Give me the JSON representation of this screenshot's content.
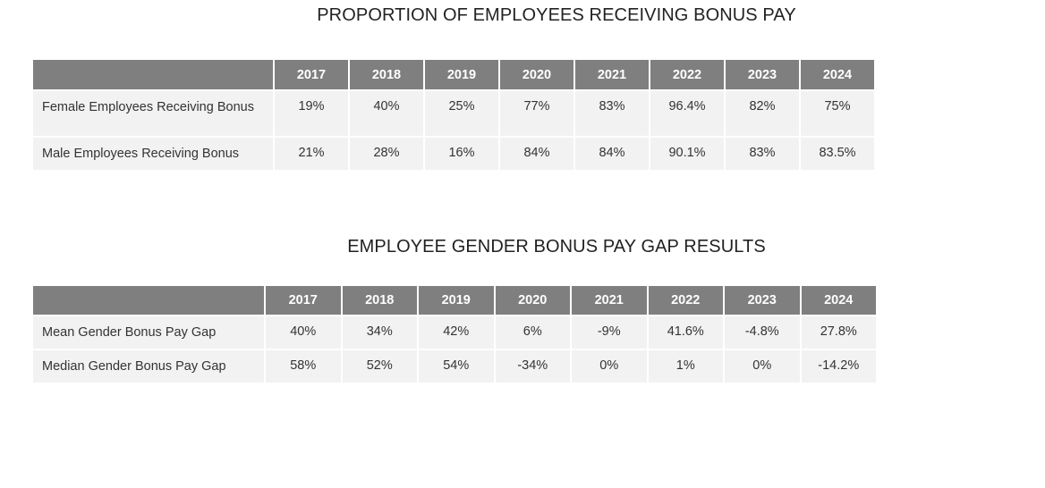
{
  "table1": {
    "title": "PROPORTION OF EMPLOYEES RECEIVING BONUS PAY",
    "years": [
      "2017",
      "2018",
      "2019",
      "2020",
      "2021",
      "2022",
      "2023",
      "2024"
    ],
    "rows": [
      {
        "label": "Female Employees Receiving Bonus",
        "values": [
          "19%",
          "40%",
          "25%",
          "77%",
          "83%",
          "96.4%",
          "82%",
          "75%"
        ]
      },
      {
        "label": "Male Employees Receiving Bonus",
        "values": [
          "21%",
          "28%",
          "16%",
          "84%",
          "84%",
          "90.1%",
          "83%",
          "83.5%"
        ]
      }
    ]
  },
  "table2": {
    "title": "EMPLOYEE GENDER BONUS PAY GAP RESULTS",
    "years": [
      "2017",
      "2018",
      "2019",
      "2020",
      "2021",
      "2022",
      "2023",
      "2024"
    ],
    "rows": [
      {
        "label": "Mean Gender Bonus Pay Gap",
        "values": [
          "40%",
          "34%",
          "42%",
          "6%",
          "-9%",
          "41.6%",
          "-4.8%",
          "27.8%"
        ]
      },
      {
        "label": "Median Gender Bonus Pay Gap",
        "values": [
          "58%",
          "52%",
          "54%",
          "-34%",
          "0%",
          "1%",
          "0%",
          "-14.2%"
        ]
      }
    ]
  },
  "colors": {
    "header_bg": "#7f7f7f",
    "cell_bg": "#f2f2f2"
  }
}
